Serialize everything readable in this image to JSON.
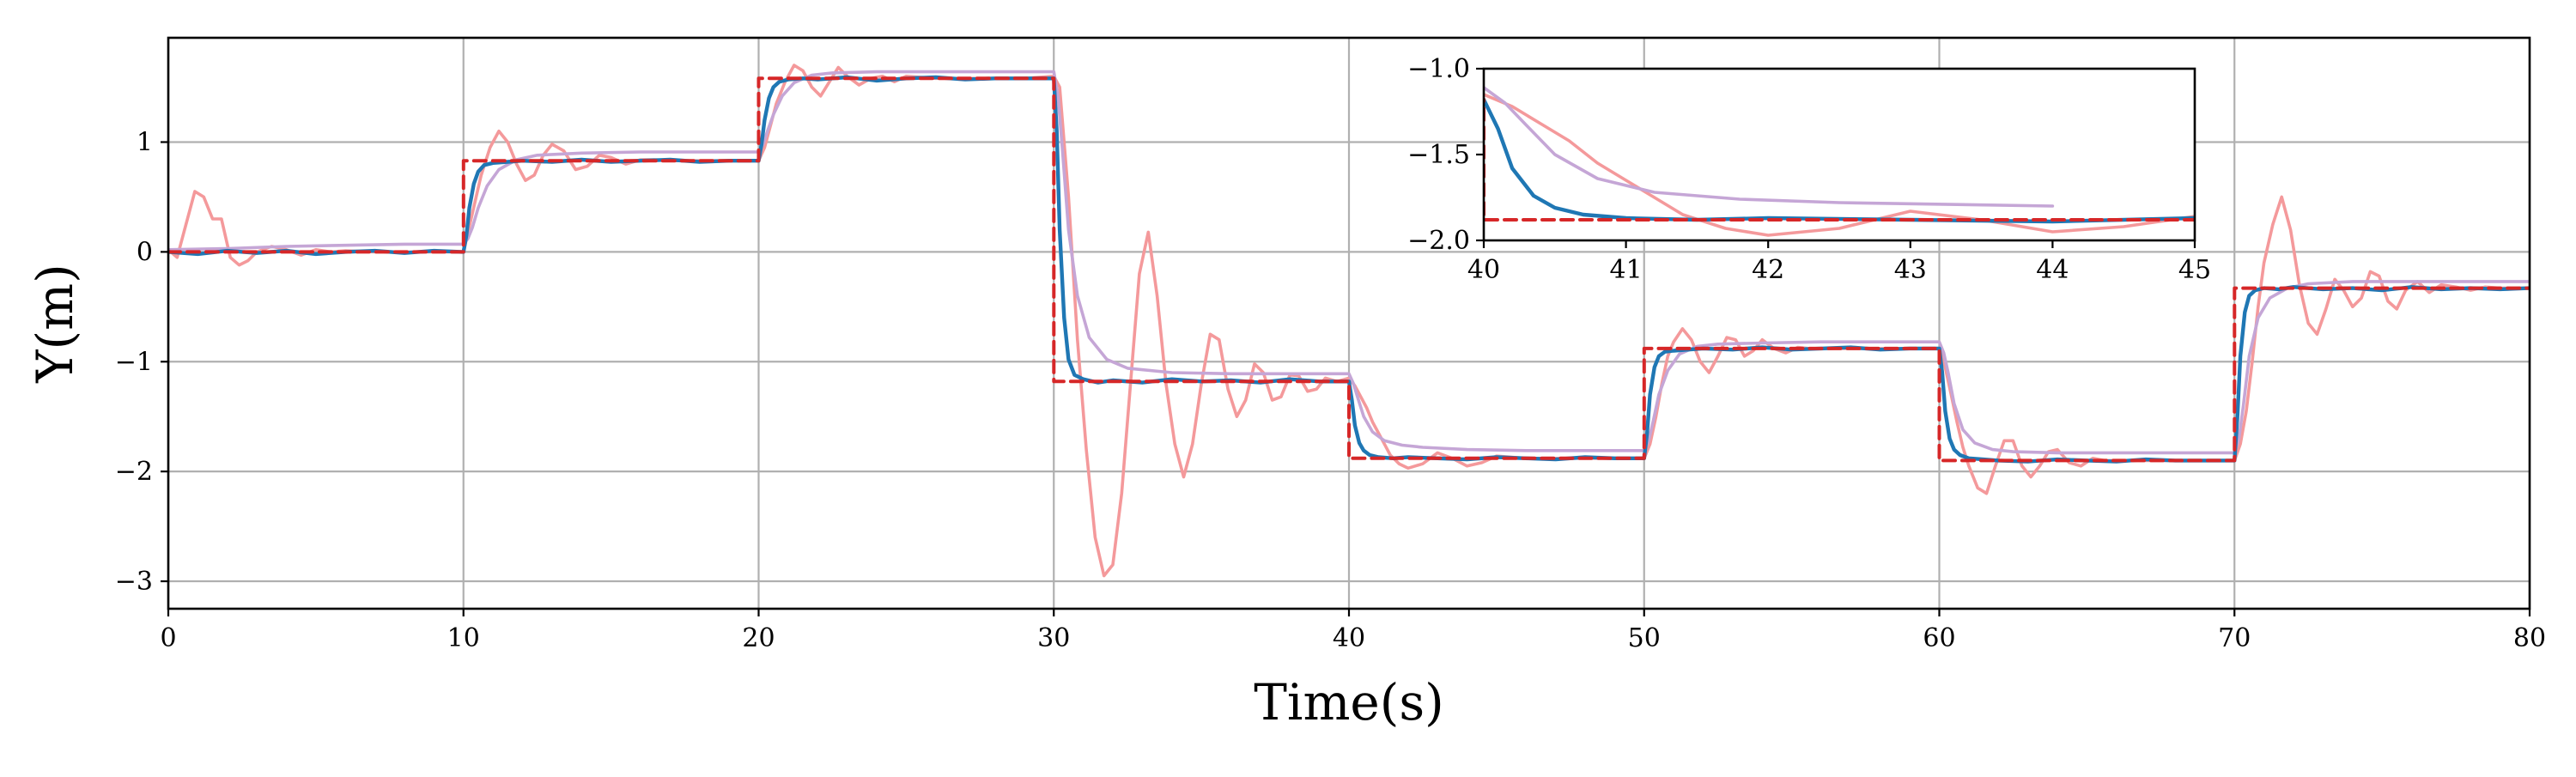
{
  "chart_data": {
    "type": "line",
    "title": "",
    "xlabel": "Time(s)",
    "ylabel": "Y(m)",
    "xlim": [
      0,
      80
    ],
    "ylim": [
      -3.25,
      1.95
    ],
    "xticks": [
      0,
      10,
      20,
      30,
      40,
      50,
      60,
      70,
      80
    ],
    "yticks": [
      1,
      0,
      -1,
      -2,
      -3
    ],
    "xtick_labels": [
      "0",
      "10",
      "20",
      "30",
      "40",
      "50",
      "60",
      "70",
      "80"
    ],
    "ytick_labels": [
      "1",
      "0",
      "−1",
      "−2",
      "−3"
    ],
    "grid": true,
    "legend": "none",
    "reference": {
      "style": "dashed",
      "color": "#d62728",
      "steps": [
        {
          "t0": 0,
          "t1": 10,
          "y": 0.0
        },
        {
          "t0": 10,
          "t1": 20,
          "y": 0.83
        },
        {
          "t0": 20,
          "t1": 30,
          "y": 1.58
        },
        {
          "t0": 30,
          "t1": 40,
          "y": -1.18
        },
        {
          "t0": 40,
          "t1": 50,
          "y": -1.88
        },
        {
          "t0": 50,
          "t1": 60,
          "y": -0.88
        },
        {
          "t0": 60,
          "t1": 70,
          "y": -1.9
        },
        {
          "t0": 70,
          "t1": 80,
          "y": -0.33
        }
      ]
    },
    "series": [
      {
        "color": "#f4999b",
        "x": [
          0,
          0.3,
          0.6,
          0.9,
          1.2,
          1.5,
          1.8,
          2.1,
          2.4,
          2.7,
          3.0,
          3.5,
          4.0,
          4.5,
          5.0,
          5.5,
          6.0,
          7.0,
          8.0,
          9.0,
          10.0,
          10.3,
          10.6,
          10.9,
          11.2,
          11.5,
          11.8,
          12.1,
          12.4,
          12.7,
          13.0,
          13.4,
          13.8,
          14.2,
          14.6,
          15.0,
          15.5,
          16.0,
          16.5,
          17.0,
          17.5,
          18.0,
          19.0,
          20.0,
          20.2,
          20.4,
          20.6,
          20.9,
          21.2,
          21.5,
          21.8,
          22.1,
          22.4,
          22.7,
          23.0,
          23.4,
          23.8,
          24.2,
          24.6,
          25.0,
          26.0,
          27.0,
          28.0,
          29.0,
          30.0,
          30.2,
          30.5,
          30.8,
          31.1,
          31.4,
          31.7,
          32.0,
          32.3,
          32.6,
          32.9,
          33.2,
          33.5,
          33.8,
          34.1,
          34.4,
          34.7,
          35.0,
          35.3,
          35.6,
          35.9,
          36.2,
          36.5,
          36.8,
          37.1,
          37.4,
          37.7,
          38.0,
          38.3,
          38.6,
          38.9,
          39.2,
          39.6,
          40.0,
          40.2,
          40.4,
          40.6,
          40.8,
          41.0,
          41.2,
          41.4,
          41.7,
          42.0,
          42.5,
          43.0,
          43.5,
          44.0,
          44.5,
          45.0,
          46,
          47,
          48,
          49,
          50.0,
          50.2,
          50.4,
          50.6,
          50.8,
          51.0,
          51.3,
          51.6,
          51.9,
          52.2,
          52.5,
          52.8,
          53.1,
          53.4,
          53.7,
          54.0,
          54.4,
          54.8,
          55.2,
          55.6,
          56,
          57,
          58,
          59,
          60.0,
          60.2,
          60.4,
          60.6,
          60.8,
          61.0,
          61.3,
          61.6,
          61.9,
          62.2,
          62.5,
          62.8,
          63.1,
          63.4,
          63.7,
          64.0,
          64.4,
          64.8,
          65.2,
          65.6,
          66,
          67,
          68,
          69,
          70.0,
          70.2,
          70.4,
          70.6,
          70.8,
          71.0,
          71.3,
          71.6,
          71.9,
          72.2,
          72.5,
          72.8,
          73.1,
          73.4,
          73.7,
          74.0,
          74.3,
          74.6,
          74.9,
          75.2,
          75.5,
          75.8,
          76.2,
          76.6,
          77.0,
          77.5,
          78.0,
          78.5,
          79.0,
          79.5,
          80.0
        ],
        "y": [
          0.02,
          -0.05,
          0.25,
          0.55,
          0.5,
          0.3,
          0.3,
          -0.05,
          -0.12,
          -0.08,
          0.0,
          0.05,
          0.02,
          -0.03,
          0.02,
          0.0,
          0.01,
          0.0,
          0.0,
          0.0,
          0.0,
          0.35,
          0.7,
          0.95,
          1.1,
          1.0,
          0.8,
          0.65,
          0.7,
          0.88,
          0.98,
          0.92,
          0.75,
          0.78,
          0.88,
          0.86,
          0.8,
          0.84,
          0.84,
          0.83,
          0.83,
          0.83,
          0.83,
          0.83,
          0.95,
          1.15,
          1.35,
          1.55,
          1.7,
          1.65,
          1.5,
          1.42,
          1.55,
          1.68,
          1.6,
          1.52,
          1.58,
          1.6,
          1.55,
          1.6,
          1.58,
          1.58,
          1.58,
          1.58,
          1.6,
          1.5,
          0.5,
          -0.8,
          -1.8,
          -2.6,
          -2.95,
          -2.85,
          -2.2,
          -1.2,
          -0.2,
          0.18,
          -0.4,
          -1.2,
          -1.75,
          -2.05,
          -1.75,
          -1.2,
          -0.75,
          -0.8,
          -1.25,
          -1.5,
          -1.35,
          -1.02,
          -1.1,
          -1.35,
          -1.32,
          -1.12,
          -1.13,
          -1.27,
          -1.25,
          -1.15,
          -1.18,
          -1.15,
          -1.22,
          -1.32,
          -1.42,
          -1.55,
          -1.65,
          -1.75,
          -1.85,
          -1.93,
          -1.97,
          -1.93,
          -1.83,
          -1.88,
          -1.95,
          -1.92,
          -1.86,
          -1.88,
          -1.88,
          -1.88,
          -1.88,
          -1.88,
          -1.75,
          -1.5,
          -1.2,
          -0.95,
          -0.82,
          -0.7,
          -0.8,
          -1.0,
          -1.1,
          -0.95,
          -0.78,
          -0.8,
          -0.95,
          -0.9,
          -0.8,
          -0.88,
          -0.92,
          -0.87,
          -0.88,
          -0.88,
          -0.88,
          -0.88,
          -0.88,
          -0.88,
          -1.05,
          -1.3,
          -1.55,
          -1.78,
          -1.95,
          -2.15,
          -2.2,
          -1.95,
          -1.72,
          -1.72,
          -1.95,
          -2.05,
          -1.95,
          -1.82,
          -1.8,
          -1.92,
          -1.95,
          -1.88,
          -1.9,
          -1.9,
          -1.9,
          -1.9,
          -1.9,
          -1.9,
          -1.75,
          -1.45,
          -1.0,
          -0.5,
          -0.1,
          0.25,
          0.5,
          0.2,
          -0.3,
          -0.65,
          -0.75,
          -0.52,
          -0.25,
          -0.35,
          -0.5,
          -0.42,
          -0.18,
          -0.22,
          -0.45,
          -0.52,
          -0.35,
          -0.27,
          -0.37,
          -0.3,
          -0.32,
          -0.35,
          -0.32,
          -0.33,
          -0.33,
          -0.33
        ]
      },
      {
        "color": "#c5a6d6",
        "x": [
          0,
          2,
          4,
          6,
          8,
          9.9,
          10.0,
          10.15,
          10.3,
          10.5,
          10.8,
          11.2,
          11.8,
          12.5,
          14,
          16,
          18,
          19.9,
          20.0,
          20.15,
          20.3,
          20.5,
          20.8,
          21.2,
          21.8,
          22.5,
          24,
          26,
          28,
          29.9,
          30.0,
          30.15,
          30.3,
          30.5,
          30.8,
          31.2,
          31.8,
          32.5,
          34,
          36,
          38,
          39.9,
          40.0,
          40.15,
          40.3,
          40.5,
          40.8,
          41.2,
          41.8,
          42.5,
          44,
          46,
          48,
          49.9,
          50.0,
          50.15,
          50.3,
          50.5,
          50.8,
          51.2,
          51.8,
          52.5,
          54,
          56,
          58,
          59.9,
          60.0,
          60.15,
          60.3,
          60.5,
          60.8,
          61.2,
          61.8,
          62.5,
          64,
          66,
          68,
          69.9,
          70.0,
          70.15,
          70.3,
          70.5,
          70.8,
          71.2,
          71.8,
          72.5,
          74,
          76,
          78,
          80
        ],
        "y": [
          0.02,
          0.03,
          0.05,
          0.06,
          0.07,
          0.07,
          0.07,
          0.12,
          0.22,
          0.4,
          0.6,
          0.75,
          0.84,
          0.88,
          0.9,
          0.91,
          0.91,
          0.91,
          0.91,
          0.98,
          1.1,
          1.25,
          1.42,
          1.54,
          1.61,
          1.63,
          1.64,
          1.64,
          1.64,
          1.64,
          1.64,
          1.4,
          0.9,
          0.2,
          -0.4,
          -0.78,
          -0.98,
          -1.06,
          -1.1,
          -1.11,
          -1.11,
          -1.11,
          -1.11,
          -1.2,
          -1.33,
          -1.5,
          -1.64,
          -1.72,
          -1.76,
          -1.78,
          -1.8,
          -1.81,
          -1.81,
          -1.81,
          -1.81,
          -1.72,
          -1.55,
          -1.3,
          -1.08,
          -0.93,
          -0.86,
          -0.84,
          -0.83,
          -0.82,
          -0.82,
          -0.82,
          -0.82,
          -0.92,
          -1.1,
          -1.38,
          -1.62,
          -1.74,
          -1.8,
          -1.82,
          -1.83,
          -1.83,
          -1.83,
          -1.83,
          -1.83,
          -1.7,
          -1.4,
          -0.95,
          -0.6,
          -0.42,
          -0.33,
          -0.29,
          -0.27,
          -0.27,
          -0.27,
          -0.27
        ]
      },
      {
        "color": "#1f77b4",
        "x": [
          0,
          1,
          2,
          3,
          4,
          5,
          6,
          7,
          8,
          9,
          9.95,
          10.0,
          10.1,
          10.2,
          10.35,
          10.5,
          10.7,
          11.0,
          11.5,
          12,
          13,
          14,
          15,
          16,
          17,
          18,
          19,
          19.95,
          20.0,
          20.1,
          20.2,
          20.35,
          20.5,
          20.7,
          21.0,
          21.5,
          22,
          23,
          24,
          25,
          26,
          27,
          28,
          29,
          29.95,
          30.0,
          30.1,
          30.2,
          30.35,
          30.5,
          30.7,
          31.0,
          31.5,
          32,
          33,
          34,
          35,
          36,
          37,
          38,
          39,
          39.95,
          40.0,
          40.1,
          40.2,
          40.35,
          40.5,
          40.7,
          41.0,
          41.5,
          42,
          43,
          44,
          45,
          46,
          47,
          48,
          49,
          49.95,
          50.0,
          50.1,
          50.2,
          50.35,
          50.5,
          50.7,
          51.0,
          51.5,
          52,
          53,
          54,
          55,
          56,
          57,
          58,
          59,
          59.95,
          60.0,
          60.1,
          60.2,
          60.35,
          60.5,
          60.7,
          61.0,
          61.5,
          62,
          63,
          64,
          65,
          66,
          67,
          68,
          69,
          69.95,
          70.0,
          70.1,
          70.2,
          70.35,
          70.5,
          70.7,
          71.0,
          71.5,
          72,
          73,
          74,
          75,
          76,
          77,
          78,
          79,
          80
        ],
        "y": [
          0.0,
          -0.02,
          0.01,
          -0.01,
          0.01,
          -0.02,
          0.0,
          0.01,
          -0.01,
          0.01,
          0.0,
          0.0,
          0.15,
          0.4,
          0.62,
          0.73,
          0.79,
          0.81,
          0.82,
          0.83,
          0.82,
          0.84,
          0.82,
          0.83,
          0.84,
          0.82,
          0.83,
          0.83,
          0.83,
          0.98,
          1.2,
          1.4,
          1.5,
          1.55,
          1.57,
          1.58,
          1.57,
          1.59,
          1.56,
          1.58,
          1.59,
          1.57,
          1.58,
          1.58,
          1.58,
          1.58,
          1.1,
          0.2,
          -0.6,
          -0.98,
          -1.12,
          -1.16,
          -1.19,
          -1.17,
          -1.19,
          -1.16,
          -1.18,
          -1.17,
          -1.19,
          -1.16,
          -1.18,
          -1.18,
          -1.18,
          -1.35,
          -1.58,
          -1.74,
          -1.81,
          -1.85,
          -1.87,
          -1.88,
          -1.87,
          -1.88,
          -1.89,
          -1.87,
          -1.88,
          -1.89,
          -1.87,
          -1.88,
          -1.88,
          -1.88,
          -1.65,
          -1.3,
          -1.05,
          -0.95,
          -0.91,
          -0.9,
          -0.89,
          -0.88,
          -0.89,
          -0.87,
          -0.89,
          -0.88,
          -0.87,
          -0.89,
          -0.88,
          -0.88,
          -0.88,
          -1.1,
          -1.45,
          -1.7,
          -1.8,
          -1.85,
          -1.88,
          -1.89,
          -1.9,
          -1.91,
          -1.89,
          -1.9,
          -1.91,
          -1.89,
          -1.9,
          -1.9,
          -1.9,
          -1.9,
          -1.5,
          -0.95,
          -0.55,
          -0.4,
          -0.35,
          -0.33,
          -0.34,
          -0.32,
          -0.34,
          -0.33,
          -0.35,
          -0.32,
          -0.34,
          -0.33,
          -0.34,
          -0.33
        ]
      }
    ],
    "inset": {
      "xlim": [
        40,
        45
      ],
      "ylim": [
        -2.0,
        -1.0
      ],
      "xticks": [
        40,
        41,
        42,
        43,
        44,
        45
      ],
      "yticks": [
        -1.0,
        -1.5,
        -2.0
      ],
      "xtick_labels": [
        "40",
        "41",
        "42",
        "43",
        "44",
        "45"
      ],
      "ytick_labels": [
        "−1.0",
        "−1.5",
        "−2.0"
      ],
      "grid": false
    }
  }
}
